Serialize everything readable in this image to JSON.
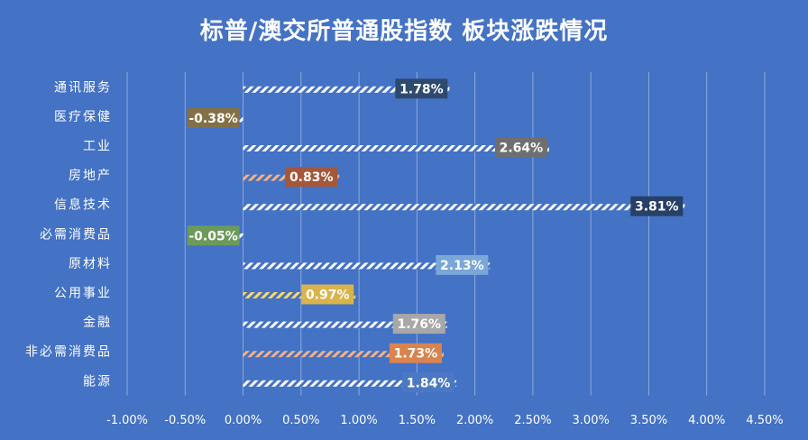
{
  "chart_data": {
    "type": "bar",
    "orientation": "horizontal",
    "title": "标普/澳交所普通股指数 板块涨跌情况",
    "xlim": [
      -0.01,
      0.045
    ],
    "x_ticks": [
      "-1.00%",
      "-0.50%",
      "0.00%",
      "0.50%",
      "1.00%",
      "1.50%",
      "2.00%",
      "2.50%",
      "3.00%",
      "3.50%",
      "4.00%",
      "4.50%"
    ],
    "grid": true,
    "categories": [
      "通讯服务",
      "医疗保健",
      "工业",
      "房地产",
      "信息技术",
      "必需消费品",
      "原材料",
      "公用事业",
      "金融",
      "非必需消费品",
      "能源"
    ],
    "values": [
      1.78,
      -0.38,
      2.64,
      0.83,
      3.81,
      -0.05,
      2.13,
      0.97,
      1.76,
      1.73,
      1.84
    ],
    "labels": [
      "1.78%",
      "-0.38%",
      "2.64%",
      "0.83%",
      "3.81%",
      "-0.05%",
      "2.13%",
      "0.97%",
      "1.76%",
      "1.73%",
      "1.84%"
    ],
    "bar_colors": [
      "#ffffff",
      "#ffffff",
      "#ffffff",
      "#f4b183",
      "#ffffff",
      "#ffffff",
      "#ffffff",
      "#ffd966",
      "#ffffff",
      "#f4b183",
      "#ffffff"
    ],
    "label_colors": [
      "#2e4a6e",
      "#847046",
      "#6f6f6f",
      "#a5573a",
      "#284067",
      "#6b9a5a",
      "#7aa6d8",
      "#d9b34c",
      "#a8a8a8",
      "#d9844f",
      "#4a78c2"
    ]
  }
}
